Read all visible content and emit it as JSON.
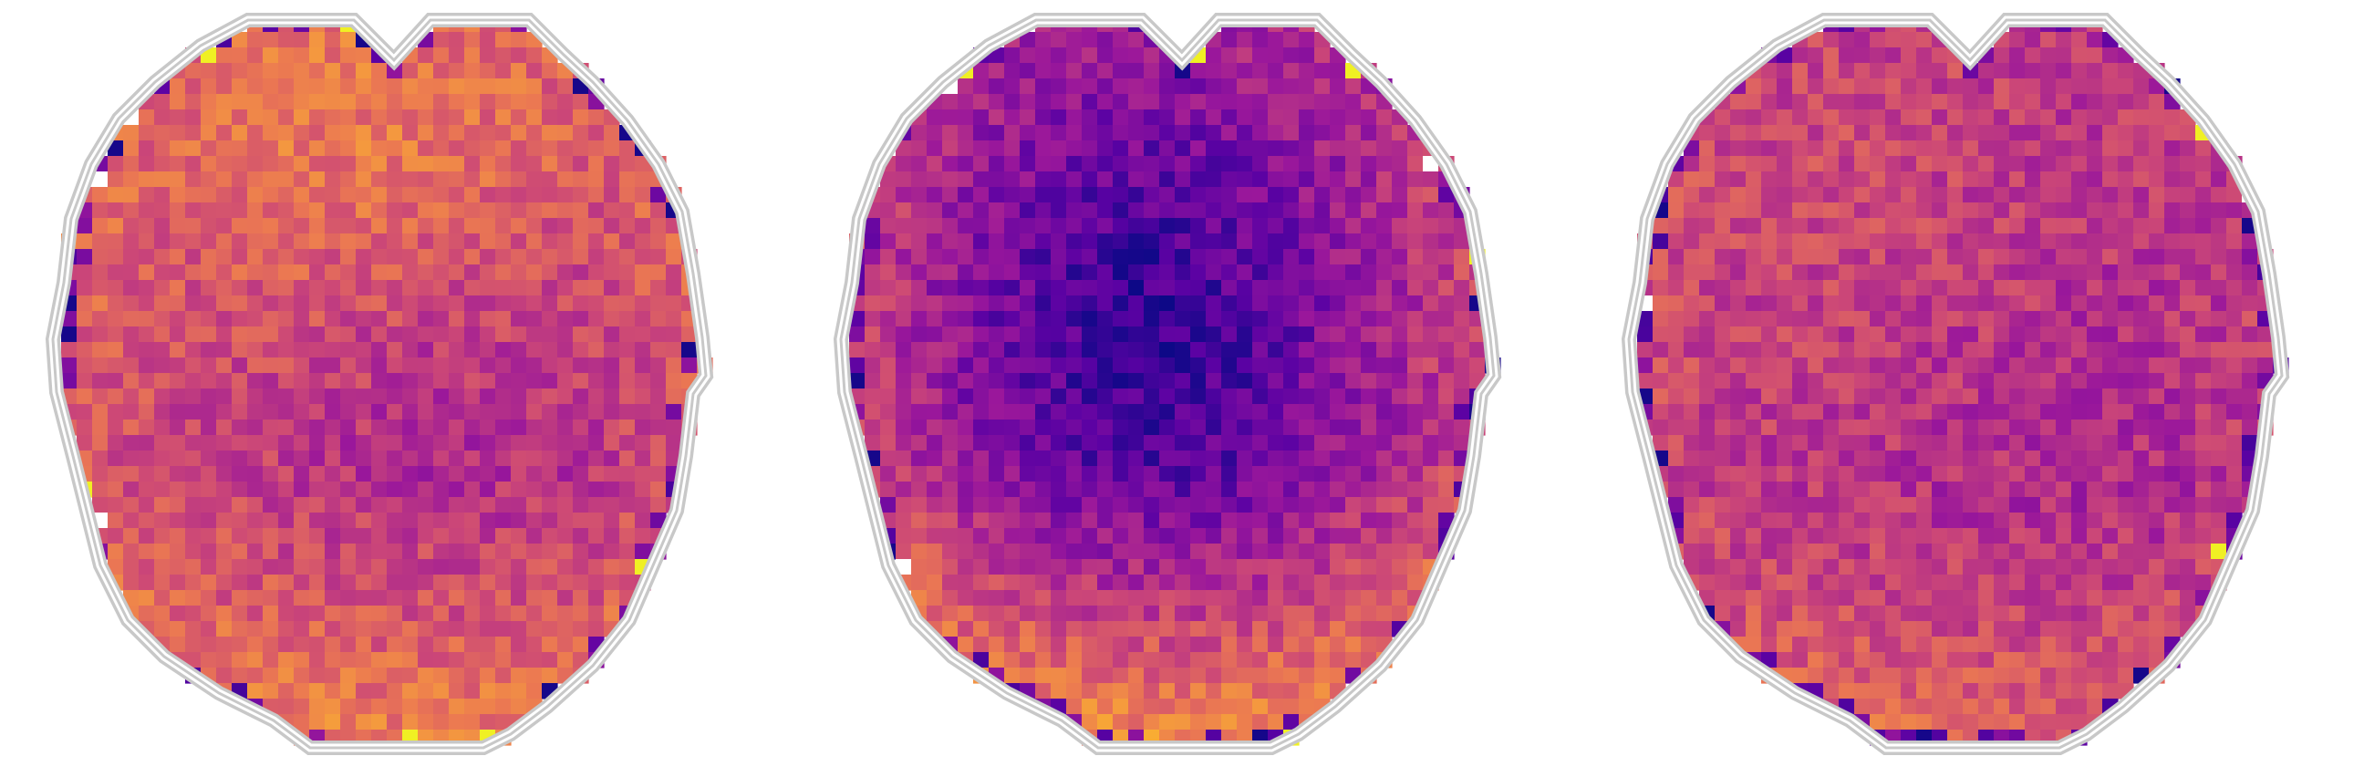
{
  "figure": {
    "panels": [
      {
        "id": "panel-1",
        "pattern": "frontal-warm"
      },
      {
        "id": "panel-2",
        "pattern": "central-cool"
      },
      {
        "id": "panel-3",
        "pattern": "posterior-noisy"
      }
    ],
    "colormap": {
      "name": "plasma",
      "stops": [
        "#0d0887",
        "#5b02a3",
        "#9a179b",
        "#cb4678",
        "#eb7852",
        "#fbb32f",
        "#eff821"
      ]
    },
    "outline_color": "#c8c8c8",
    "outline_inner_color": "#ffffff",
    "mask_edge_color": "#2a0a5a"
  }
}
